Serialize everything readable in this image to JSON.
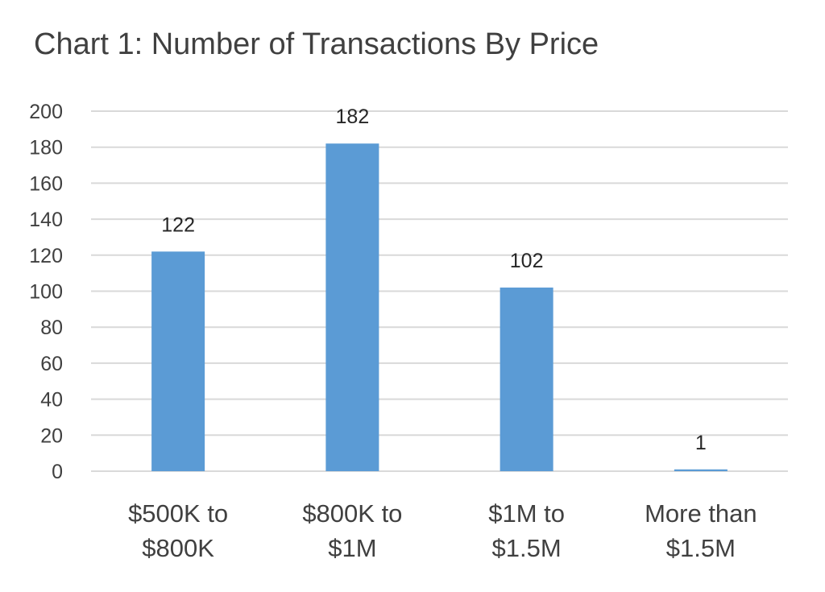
{
  "chart_data": {
    "type": "bar",
    "title": "Chart 1: Number of Transactions By Price",
    "categories": [
      "$500K to $800K",
      "$800K to $1M",
      "$1M to $1.5M",
      "More than $1.5M"
    ],
    "category_lines": [
      [
        "$500K to",
        "$800K"
      ],
      [
        "$800K to",
        "$1M"
      ],
      [
        "$1M to",
        "$1.5M"
      ],
      [
        "More than",
        "$1.5M"
      ]
    ],
    "values": [
      122,
      182,
      102,
      1
    ],
    "data_labels": [
      "122",
      "182",
      "102",
      "1"
    ],
    "xlabel": "",
    "ylabel": "",
    "ylim": [
      0,
      200
    ],
    "yticks": [
      0,
      20,
      40,
      60,
      80,
      100,
      120,
      140,
      160,
      180,
      200
    ],
    "grid": true,
    "legend": "none",
    "colors": {
      "bar": "#5b9bd5",
      "grid": "#d9d9d9",
      "text": "#404040"
    }
  }
}
